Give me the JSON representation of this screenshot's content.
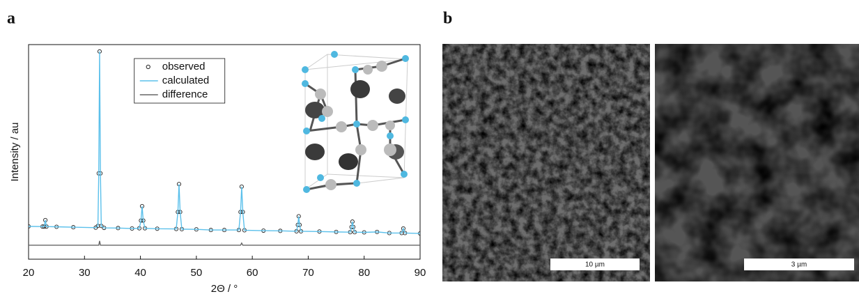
{
  "panel_labels": [
    "a",
    "b"
  ],
  "chart_data": {
    "type": "line",
    "xlabel": "2Θ / °",
    "ylabel": "Intensity / au",
    "x": [
      20,
      22.5,
      22.8,
      23.0,
      23.2,
      25,
      28,
      32,
      32.4,
      32.55,
      32.7,
      32.85,
      33.0,
      33.5,
      36,
      38.5,
      39.8,
      40.1,
      40.3,
      40.5,
      40.8,
      43,
      46.4,
      46.7,
      46.9,
      47.1,
      47.4,
      50,
      52.6,
      55,
      57.6,
      57.9,
      58.1,
      58.3,
      58.6,
      62,
      65,
      67.9,
      68.15,
      68.3,
      68.45,
      68.7,
      72,
      75,
      77.5,
      77.75,
      77.9,
      78.05,
      78.3,
      80,
      82.3,
      84.5,
      86.7,
      87.0,
      87.3,
      90
    ],
    "series": [
      {
        "name": "observed",
        "style": "marker",
        "color": "#222222",
        "values": [
          15.3,
          15.2,
          15.2,
          18.2,
          15.2,
          15.1,
          14.9,
          14.7,
          15.5,
          40,
          96.8,
          40,
          15.5,
          14.6,
          14.5,
          14.3,
          14.4,
          18,
          24.7,
          18,
          14.4,
          14.2,
          14.1,
          22,
          35,
          22,
          14.0,
          13.9,
          13.6,
          13.6,
          13.6,
          22,
          33.8,
          22,
          13.5,
          13.3,
          13.2,
          13.0,
          16,
          20,
          16,
          13.0,
          12.9,
          12.7,
          12.6,
          15,
          17.5,
          15,
          12.6,
          12.5,
          12.7,
          12.2,
          12.2,
          14.3,
          12.2,
          12.0
        ]
      },
      {
        "name": "calculated",
        "style": "line",
        "color": "#5bc0eb",
        "values": [
          15.3,
          15.2,
          15.2,
          18.2,
          15.2,
          15.1,
          14.9,
          14.7,
          15.5,
          40,
          96.8,
          40,
          15.5,
          14.6,
          14.5,
          14.3,
          14.4,
          18,
          24.7,
          18,
          14.4,
          14.2,
          14.1,
          22,
          35,
          22,
          14.0,
          13.9,
          13.6,
          13.6,
          13.6,
          22,
          33.8,
          22,
          13.5,
          13.3,
          13.2,
          13.0,
          16,
          20,
          16,
          13.0,
          12.9,
          12.7,
          12.6,
          15,
          17.5,
          15,
          12.6,
          12.5,
          12.7,
          12.2,
          12.2,
          14.3,
          12.2,
          12.0
        ]
      },
      {
        "name": "difference",
        "style": "line",
        "color": "#666666",
        "values": [
          6.5,
          6.5,
          6.5,
          6.5,
          6.5,
          6.5,
          6.5,
          6.5,
          6.5,
          6.5,
          8.5,
          6.5,
          6.5,
          6.5,
          6.5,
          6.5,
          6.5,
          6.5,
          6.5,
          6.5,
          6.5,
          6.5,
          6.5,
          6.5,
          6.5,
          6.5,
          6.5,
          6.5,
          6.5,
          6.5,
          6.5,
          6.5,
          7.5,
          6.5,
          6.5,
          6.5,
          6.5,
          6.5,
          6.5,
          6.5,
          6.5,
          6.5,
          6.5,
          6.5,
          6.5,
          6.5,
          6.5,
          6.5,
          6.5,
          6.5,
          6.5,
          6.5,
          6.5,
          6.5,
          6.5,
          6.5
        ]
      }
    ],
    "xlim": [
      20,
      90
    ],
    "xticks": [
      20,
      30,
      40,
      50,
      60,
      70,
      80,
      90
    ],
    "ylim": [
      0,
      100
    ],
    "legend_position": "upper center"
  },
  "images": [
    {
      "scale_bar": "10 µm"
    },
    {
      "scale_bar": "3 µm"
    }
  ]
}
